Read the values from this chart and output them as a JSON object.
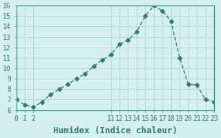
{
  "x": [
    0,
    1,
    2,
    3,
    4,
    5,
    6,
    7,
    8,
    9,
    10,
    11,
    12,
    13,
    14,
    15,
    16,
    17,
    18,
    19,
    20,
    21,
    22,
    23
  ],
  "y": [
    7.0,
    6.5,
    6.3,
    6.8,
    7.5,
    8.0,
    8.5,
    9.0,
    9.5,
    10.2,
    10.8,
    11.3,
    12.3,
    12.7,
    13.5,
    15.0,
    16.0,
    15.5,
    14.5,
    11.0,
    8.5,
    8.4,
    7.0,
    6.8
  ],
  "line_color": "#2e7d6e",
  "marker": "D",
  "marker_size": 3,
  "bg_color": "#d6f0ee",
  "grid_color": "#b0d8d4",
  "xlabel": "Humidex (Indice chaleur)",
  "ylabel": "",
  "ylim": [
    6,
    16
  ],
  "yticks": [
    6,
    7,
    8,
    9,
    10,
    11,
    12,
    13,
    14,
    15,
    16
  ],
  "xtick_show": [
    0,
    1,
    2,
    11,
    12,
    13,
    14,
    15,
    16,
    17,
    18,
    19,
    20,
    21,
    22,
    23
  ],
  "xlim": [
    0,
    23
  ],
  "xlabel_fontsize": 9,
  "tick_fontsize": 7
}
